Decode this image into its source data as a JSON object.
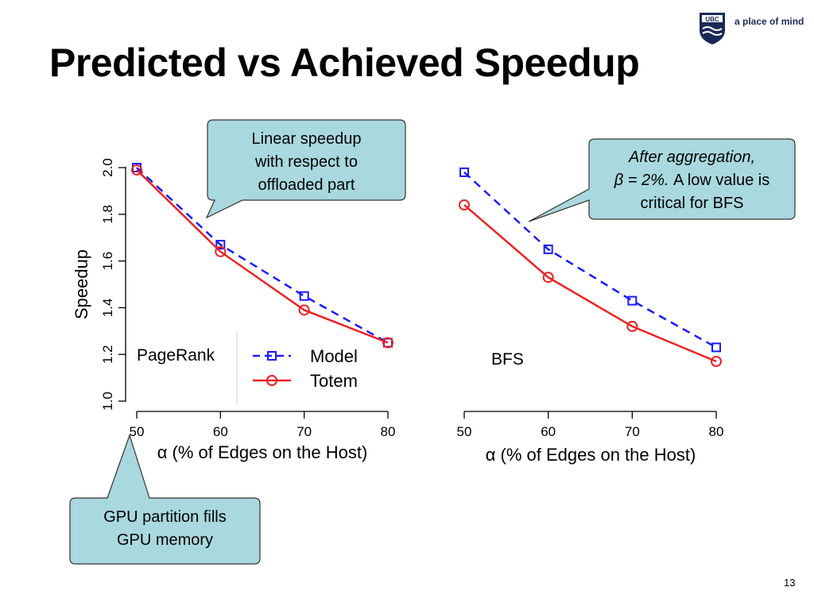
{
  "slide": {
    "title": "Predicted vs Achieved Speedup",
    "logo_text": "a place of mind",
    "logo_crest": "UBC",
    "page_number": "13"
  },
  "callouts": {
    "linear": {
      "lines": [
        "Linear speedup",
        "with respect to",
        "offloaded part"
      ]
    },
    "aggregation": {
      "line1": "After aggregation,",
      "line2_italic": "β = 2%.",
      "line2_rest": " A low value is",
      "line3": "critical for BFS"
    },
    "gpu": {
      "lines": [
        "GPU partition fills",
        "GPU memory"
      ]
    }
  },
  "colors": {
    "model": "#1a1aff",
    "totem": "#ee2222",
    "callout_fill": "#a9d8de",
    "callout_stroke": "#333333",
    "logo": "#1a2a57"
  },
  "chart_data": [
    {
      "type": "line",
      "legend_label": "PageRank",
      "xlabel": "α (% of Edges on the Host)",
      "ylabel": "Speedup",
      "x": [
        50,
        60,
        70,
        80
      ],
      "xticks": [
        "50",
        "60",
        "70",
        "80"
      ],
      "yticks": [
        "1.0",
        "1.2",
        "1.4",
        "1.6",
        "1.8",
        "2.0"
      ],
      "ylim": [
        1.0,
        2.0
      ],
      "series": [
        {
          "name": "Model",
          "values": [
            2.0,
            1.67,
            1.45,
            1.25
          ],
          "marker": "square",
          "dash": true
        },
        {
          "name": "Totem",
          "values": [
            1.99,
            1.64,
            1.39,
            1.25
          ],
          "marker": "circle",
          "dash": false
        }
      ],
      "legend": "bottom-right"
    },
    {
      "type": "line",
      "legend_label": "BFS",
      "xlabel": "α (% of Edges on the Host)",
      "x": [
        50,
        60,
        70,
        80
      ],
      "xticks": [
        "50",
        "60",
        "70",
        "80"
      ],
      "ylim": [
        1.0,
        2.0
      ],
      "series": [
        {
          "values": [
            1.98,
            1.65,
            1.43,
            1.23
          ],
          "marker": "square",
          "dash": true
        },
        {
          "values": [
            1.84,
            1.53,
            1.32,
            1.17
          ],
          "marker": "circle",
          "dash": false
        }
      ]
    }
  ]
}
